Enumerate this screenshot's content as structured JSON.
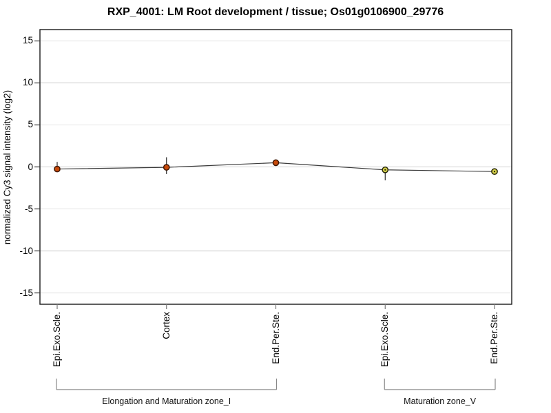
{
  "chart_data": {
    "type": "line",
    "title": "RXP_4001: LM Root development / tissue; Os01g0106900_29776",
    "ylabel": "normalized Cy3 signal intensity (log2)",
    "xlabel": "",
    "ylim": [
      -16.35,
      16.35
    ],
    "yticks": [
      15,
      10,
      5,
      0,
      -5,
      -10,
      -15
    ],
    "grid": true,
    "legend": "none",
    "categories": [
      "Epi.Exo.Scle.",
      "Cortex",
      "End.Per.Ste.",
      "Epi.Exo.Scle.",
      "End.Per.Ste."
    ],
    "series": [
      {
        "name": "normalized Cy3 signal intensity (log2)",
        "values": [
          -0.25,
          -0.05,
          0.5,
          -0.35,
          -0.55
        ],
        "error_high": [
          0.6,
          1.15,
          0.5,
          -0.35,
          -0.55
        ],
        "error_low": [
          -0.25,
          -0.85,
          0.5,
          -1.6,
          -0.55
        ]
      }
    ],
    "groups": [
      {
        "label": "Elongation and Maturation zone_I",
        "start": 0,
        "end": 2
      },
      {
        "label": "Maturation zone_V",
        "start": 3,
        "end": 4
      }
    ]
  },
  "colors": {
    "point_fill": [
      "#c84a0a",
      "#c84a0a",
      "#c84a0a",
      "#d6d24a",
      "#d6d24a"
    ],
    "point_stroke": [
      "#3d1500",
      "#3d1500",
      "#3d1500",
      "#26260a",
      "#26260a"
    ],
    "line": "#3c3c3c",
    "error_bar": "#1a1a1a",
    "grid_major": "#d0d0d0",
    "grid_minor": "#e4e4e4",
    "frame": "#1a1a1a",
    "y_tick": "#333333",
    "x_tick": "#777777",
    "bracket": "#888888"
  }
}
